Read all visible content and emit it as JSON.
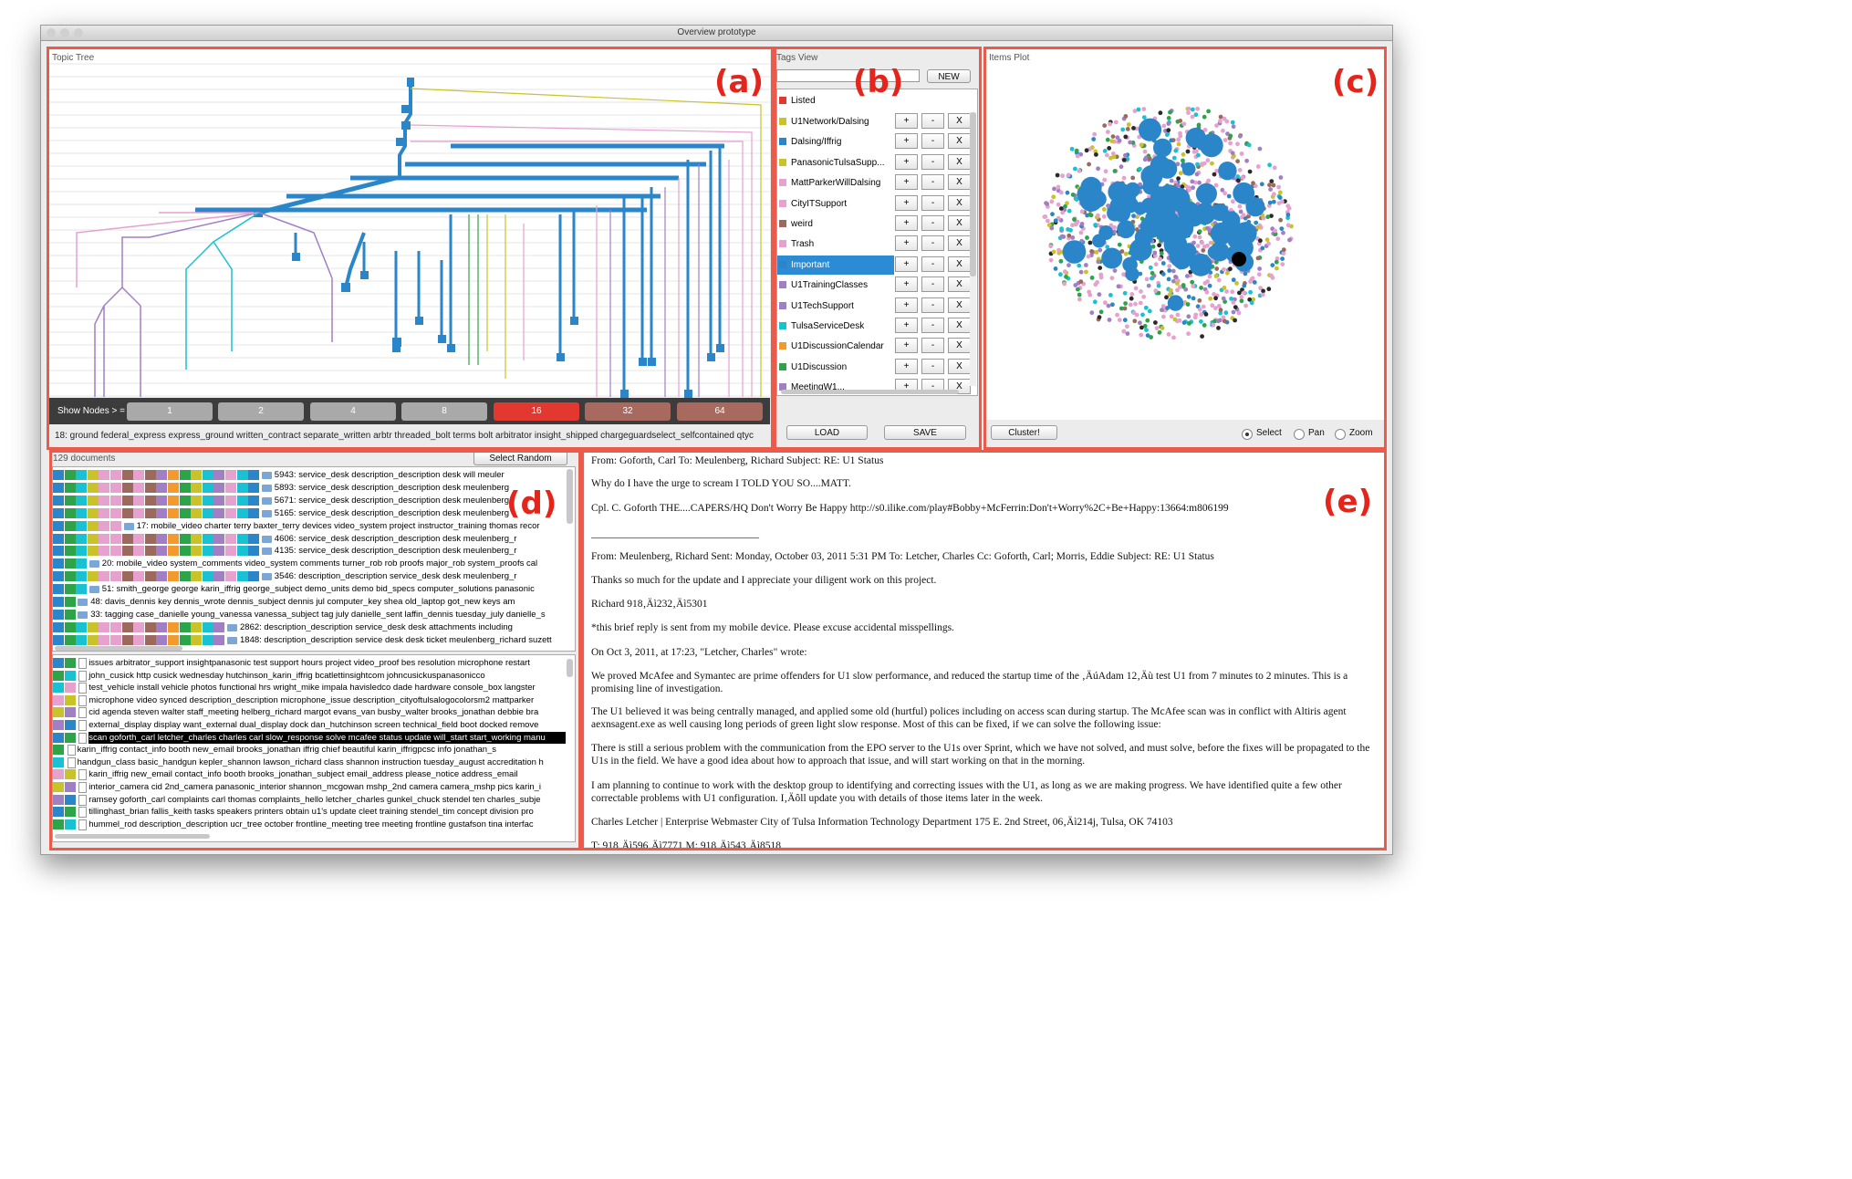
{
  "window": {
    "title": "Overview prototype"
  },
  "region_labels": {
    "a": "(a)",
    "b": "(b)",
    "c": "(c)",
    "d": "(d)",
    "e": "(e)"
  },
  "topic_tree": {
    "title": "Topic Tree",
    "show_nodes_label": "Show Nodes > =",
    "node_buttons": [
      {
        "label": "1",
        "color": "#a9a9a9"
      },
      {
        "label": "2",
        "color": "#a9a9a9"
      },
      {
        "label": "4",
        "color": "#a9a9a9"
      },
      {
        "label": "8",
        "color": "#a9a9a9"
      },
      {
        "label": "16",
        "color": "#e2382f"
      },
      {
        "label": "32",
        "color": "#a86a5e"
      },
      {
        "label": "64",
        "color": "#a86a5e"
      }
    ],
    "status_text": "18: ground federal_express express_ground written_contract separate_written arbtr threaded_bolt terms bolt arbitrator insight_shipped chargeguardselect_selfcontained qtyc"
  },
  "tags_view": {
    "title": "Tags View",
    "new_label": "NEW",
    "listed_label": "Listed",
    "listed_color": "#e2382f",
    "tags": [
      {
        "name": "U1Network/Dalsing",
        "color": "#c9c22b",
        "selected": false
      },
      {
        "name": "Dalsing/Iffrig",
        "color": "#2a86c8",
        "selected": false
      },
      {
        "name": "PanasonicTulsaSupp...",
        "color": "#c9c22b",
        "selected": false
      },
      {
        "name": "MattParkerWillDalsing",
        "color": "#e6a1cf",
        "selected": false
      },
      {
        "name": "CityITSupport",
        "color": "#e6a1cf",
        "selected": false
      },
      {
        "name": "weird",
        "color": "#9b6a5c",
        "selected": false
      },
      {
        "name": "Trash",
        "color": "#e6a1cf",
        "selected": false
      },
      {
        "name": "Important",
        "color": "#2a86c8",
        "selected": true
      },
      {
        "name": "U1TrainingClasses",
        "color": "#a07fc4",
        "selected": false
      },
      {
        "name": "U1TechSupport",
        "color": "#a07fc4",
        "selected": false
      },
      {
        "name": "TulsaServiceDesk",
        "color": "#19c1d3",
        "selected": false
      },
      {
        "name": "U1DiscussionCalendar",
        "color": "#f39a2c",
        "selected": false
      },
      {
        "name": "U1Discussion",
        "color": "#2ea44a",
        "selected": false
      },
      {
        "name": "MeetingW1...",
        "color": "#a07fc4",
        "selected": false
      }
    ],
    "plus_label": "+",
    "minus_label": "-",
    "remove_label": "X",
    "load_label": "LOAD",
    "save_label": "SAVE"
  },
  "items_plot": {
    "title": "Items Plot",
    "cluster_label": "Cluster!",
    "modes": [
      {
        "label": "Select",
        "selected": true
      },
      {
        "label": "Pan",
        "selected": false
      },
      {
        "label": "Zoom",
        "selected": false
      }
    ]
  },
  "documents": {
    "count_label": "129 documents",
    "select_random_label": "Select Random",
    "tag_colors": [
      "#2a86c8",
      "#2ea44a",
      "#19c1d3",
      "#c9c22b",
      "#e6a1cf",
      "#e6a1cf",
      "#9b6a5c",
      "#e6a1cf",
      "#9b6a5c",
      "#a07fc4",
      "#f39a2c",
      "#2ea44a",
      "#c9c22b",
      "#19c1d3",
      "#a07fc4",
      "#e6a1cf",
      "#19c1d3",
      "#2a86c8"
    ],
    "folder_rows": [
      {
        "text": "5943: service_desk description_description desk will meuler",
        "bars": 18
      },
      {
        "text": "5893: service_desk description_description desk meulenberg",
        "bars": 18
      },
      {
        "text": "5671: service_desk description_description desk meulenberg",
        "bars": 18
      },
      {
        "text": "5165: service_desk description_description desk meulenberg",
        "bars": 18
      },
      {
        "text": "17: mobile_video charter terry baxter_terry devices video_system project instructor_training thomas recor",
        "bars": 6
      },
      {
        "text": "4606: service_desk description_description desk meulenberg_r",
        "bars": 18
      },
      {
        "text": "4135: service_desk description_description desk meulenberg_r",
        "bars": 18
      },
      {
        "text": "20: mobile_video system_comments video_system comments turner_rob rob proofs major_rob system_proofs cal",
        "bars": 3
      },
      {
        "text": "3546: description_description service_desk desk meulenberg_r",
        "bars": 18
      },
      {
        "text": "51: smith_george george karin_iffrig george_subject demo_units demo bid_specs computer_solutions panasonic",
        "bars": 3
      },
      {
        "text": "48: davis_dennis key dennis_wrote dennis_subject dennis jul computer_key shea old_laptop got_new keys am",
        "bars": 2
      },
      {
        "text": "33: tagging case_danielle young_vanessa vanessa_subject tag july danielle_sent laffin_dennis tuesday_july danielle_s",
        "bars": 2
      },
      {
        "text": "2862: description_description service_desk desk attachments including",
        "bars": 15
      },
      {
        "text": "1848: description_description service desk desk ticket meulenberg_richard suzett",
        "bars": 15
      }
    ],
    "file_rows": [
      {
        "text": "issues arbitrator_support insightpanasonic test support hours project video_proof bes resolution microphone restart",
        "selected": false
      },
      {
        "text": "john_cusick http cusick wednesday hutchinson_karin_iffrig bcatlettinsightcom johncusickuspanasonicco",
        "selected": false
      },
      {
        "text": "test_vehicle install vehicle photos functional hrs wright_mike impala havisledco dade hardware console_box langster",
        "selected": false
      },
      {
        "text": "microphone video synced description_description microphone_issue description_cityoftulsalogocolorsm2 mattparker",
        "selected": false
      },
      {
        "text": "cid agenda steven walter staff_meeting helberg_richard margot evans_van busby_walter brooks_jonathan debbie bra",
        "selected": false
      },
      {
        "text": "external_display display want_external dual_display dock dan_hutchinson screen technical_field boot docked remove",
        "selected": false
      },
      {
        "text": "scan goforth_carl letcher_charles charles carl slow_response solve mcafee status update will_start start_working manu",
        "selected": true
      },
      {
        "text": "karin_iffrig contact_info booth new_email brooks_jonathan iffrig chief beautiful karin_iffrigpcsc info jonathan_s",
        "selected": false
      },
      {
        "text": "handgun_class basic_handgun kepler_shannon lawson_richard class shannon instruction tuesday_august accreditation h",
        "selected": false
      },
      {
        "text": "karin_iffrig new_email contact_info booth brooks_jonathan_subject email_address please_notice address_email",
        "selected": false
      },
      {
        "text": "interior_camera cid 2nd_camera panasonic_interior shannon_mcgowan mshp_2nd camera camera_mshp pics karin_i",
        "selected": false
      },
      {
        "text": "ramsey goforth_carl complaints carl thomas complaints_hello letcher_charles gunkel_chuck stendel ten charles_subje",
        "selected": false
      },
      {
        "text": "tillinghast_brian fallis_keith tasks speakers printers obtain u1's update cleet training stendel_tim concept division pro",
        "selected": false
      },
      {
        "text": "hummel_rod description_description ucr_tree october frontline_meeting tree meeting frontline gustafson tina interfac",
        "selected": false
      }
    ]
  },
  "email": {
    "paragraphs": [
      "From: Goforth, Carl To: Meulenberg, Richard Subject: RE: U1 Status",
      "Why do I have the urge to scream I TOLD YOU SO....MATT.",
      "Cpl. C. Goforth THE....CAPERS/HQ Don't Worry Be Happy http://s0.ilike.com/play#Bobby+McFerrin:Don't+Worry%2C+Be+Happy:13664:m806199",
      "________________________________",
      "From: Meulenberg, Richard Sent: Monday, October 03, 2011 5:31 PM To: Letcher, Charles Cc: Goforth, Carl; Morris, Eddie Subject: RE: U1 Status",
      "Thanks so much for the update and I appreciate your diligent work on this project.",
      "Richard 918‚Äì232‚Äì5301",
      "*this brief reply is sent from my mobile device. Please excuse accidental misspellings.",
      "On Oct 3, 2011, at 17:23, \"Letcher, Charles\" wrote:",
      "We proved McAfee and Symantec are prime offenders for U1 slow performance, and reduced the startup time of the ‚ÄúAdam 12‚Äù test U1 from 7 minutes to 2 minutes. This is a promising line of investigation.",
      "The U1 believed it was being centrally managed, and applied some old (hurtful) polices including on access scan during startup. The McAfee scan was in conflict with Altiris agent aexnsagent.exe as well causing long periods of green light slow response. Most of this can be fixed, if we can solve the following issue:",
      "There is still a serious problem with the communication from the EPO server to the U1s over Sprint, which we have not solved, and must solve, before the fixes will be propagated to the U1s in the field. We have a good idea about how to approach that issue, and will start working on that in the morning.",
      "I am planning to continue to work with the desktop group to identifying and correcting issues with the U1, as long as we are making progress. We have identified quite a few other correctable problems with U1 configuration. I‚Äôll update you with details of those items later in the week.",
      "Charles Letcher | Enterprise Webmaster City of Tulsa Information Technology Department 175 E. 2nd Street, 06‚Äì214j, Tulsa, OK 74103",
      "T: 918‚Äì596‚Äì7771 M: 918‚Äì543‚Äì8518"
    ]
  }
}
